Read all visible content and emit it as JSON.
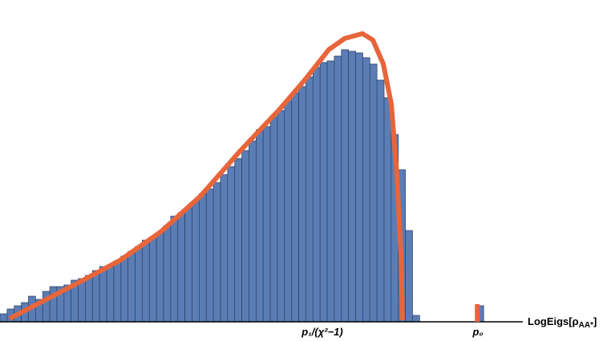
{
  "chart_data": {
    "type": "histogram",
    "bins": [
      0,
      1,
      2,
      3,
      4,
      5,
      6,
      7,
      8,
      9,
      10,
      11,
      12,
      13,
      14,
      15,
      16,
      17,
      18,
      19,
      20,
      21,
      22,
      23,
      24,
      25,
      26,
      27,
      28,
      29,
      30,
      31,
      32,
      33,
      34,
      35,
      36,
      37,
      38,
      39,
      40,
      41,
      42,
      43,
      44,
      45,
      46,
      47,
      48,
      49,
      50,
      51,
      52,
      53,
      54,
      55,
      56,
      57,
      58,
      59,
      60,
      61,
      62,
      63,
      64,
      65,
      66,
      67,
      68
    ],
    "values": [
      10,
      16,
      20,
      24,
      32,
      28,
      38,
      44,
      44,
      46,
      52,
      54,
      58,
      64,
      69,
      70,
      76,
      82,
      88,
      94,
      102,
      106,
      112,
      120,
      132,
      136,
      142,
      150,
      160,
      166,
      174,
      184,
      194,
      204,
      214,
      226,
      240,
      244,
      256,
      264,
      276,
      286,
      294,
      306,
      318,
      324,
      326,
      332,
      340,
      338,
      336,
      330,
      322,
      302,
      280,
      234,
      190,
      114,
      8,
      0,
      0,
      0,
      0,
      0,
      0,
      0,
      0,
      20
    ],
    "color": "#5b7db6",
    "xlim": [
      0,
      73.5
    ],
    "ylim": [
      0,
      402
    ],
    "lines": [
      {
        "color": "#e8653a",
        "x": [
          1.35,
          5.64,
          11.27,
          16.91,
          22.55,
          28.18,
          33.82,
          39.46,
          42.84,
          46.22,
          48.48,
          50.96,
          52.42,
          53.89,
          55.02,
          55.81,
          56.37,
          56.6
        ],
        "values": [
          4,
          24,
          50,
          77,
          112,
          157,
          214,
          267,
          302,
          340,
          354,
          360,
          352,
          322,
          272,
          182,
          82,
          2
        ]
      },
      {
        "color": "#e8653a",
        "x": [
          67.1,
          67.1
        ],
        "values": [
          0,
          22
        ]
      }
    ],
    "annotations": [
      "p₁/(χ²−1)",
      "p₀"
    ],
    "xlabel": [
      "LogEigs[ρ",
      "AA*",
      "]"
    ]
  }
}
